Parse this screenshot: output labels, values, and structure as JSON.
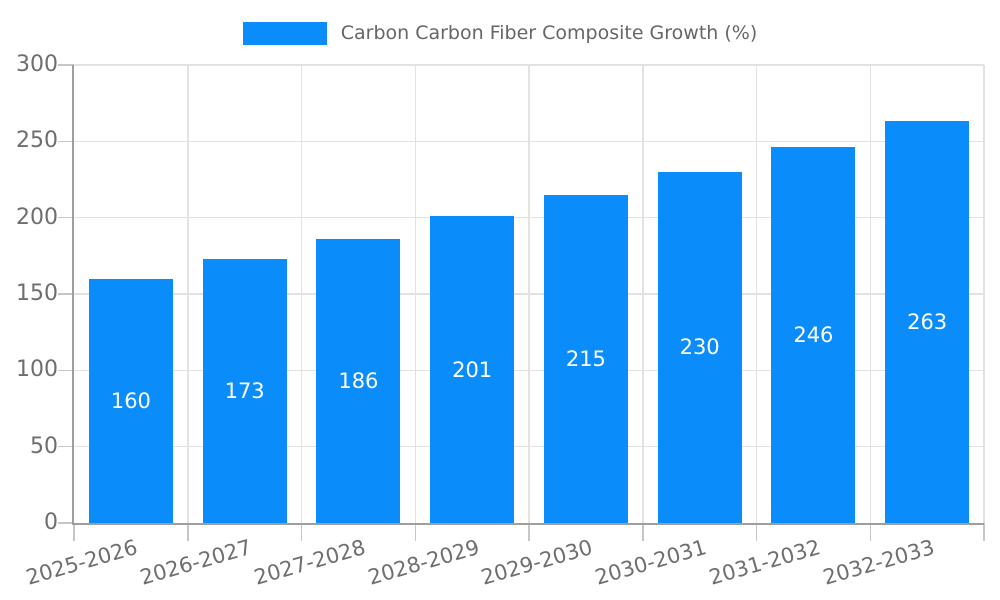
{
  "chart_data": {
    "type": "bar",
    "title": "Carbon Carbon Fiber Composite Growth (%)",
    "legend": {
      "position": "top"
    },
    "categories": [
      "2025-2026",
      "2026-2027",
      "2027-2028",
      "2028-2029",
      "2029-2030",
      "2030-2031",
      "2031-2032",
      "2032-2033"
    ],
    "values": [
      160,
      173,
      186,
      201,
      215,
      230,
      246,
      263
    ],
    "xlabel": "",
    "ylabel": "",
    "ylim": [
      0,
      300
    ],
    "yticks": [
      0,
      50,
      100,
      150,
      200,
      250,
      300
    ],
    "grid": true,
    "value_labels": "inside-center",
    "colors": {
      "bar": "#0a8cfa",
      "bar_value_label": "#ffffff",
      "legend_text": "#666666",
      "axis_text": "#6e6e6e",
      "gridline": "#e2e2e2",
      "axis_line": "#9e9e9e",
      "tick_mark": "#c6c6c6",
      "background": "#ffffff"
    }
  }
}
